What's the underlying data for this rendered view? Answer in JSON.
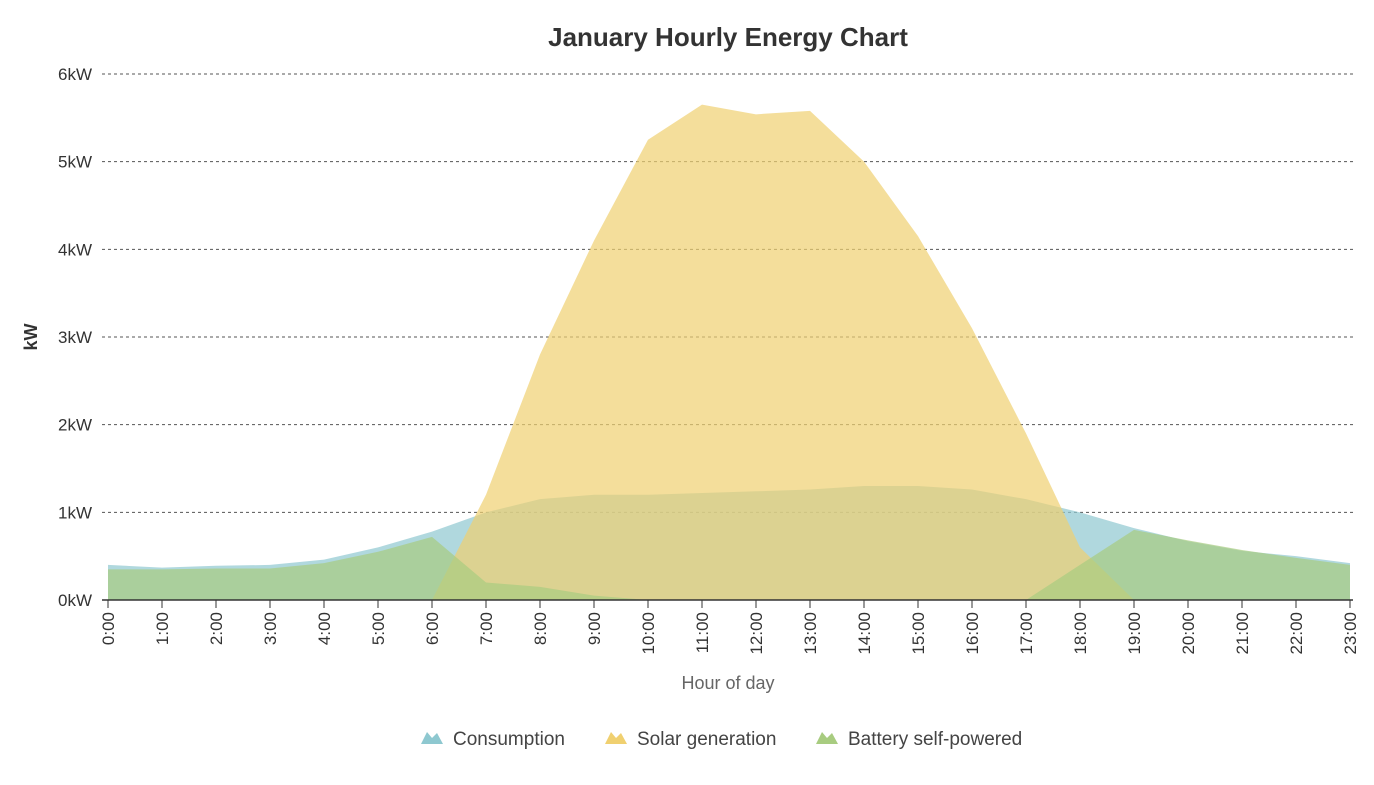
{
  "chart_data": {
    "type": "area",
    "title": "January Hourly Energy Chart",
    "xlabel": "Hour of day",
    "ylabel": "kW",
    "categories": [
      "0:00",
      "1:00",
      "2:00",
      "3:00",
      "4:00",
      "5:00",
      "6:00",
      "7:00",
      "8:00",
      "9:00",
      "10:00",
      "11:00",
      "12:00",
      "13:00",
      "14:00",
      "15:00",
      "16:00",
      "17:00",
      "18:00",
      "19:00",
      "20:00",
      "21:00",
      "22:00",
      "23:00"
    ],
    "ylim": [
      0,
      6
    ],
    "yticks": [
      0,
      1,
      2,
      3,
      4,
      5,
      6
    ],
    "ytick_labels": [
      "0kW",
      "1kW",
      "2kW",
      "3kW",
      "4kW",
      "5kW",
      "6kW"
    ],
    "grid": true,
    "legend_position": "bottom-center",
    "series": [
      {
        "name": "Consumption",
        "color": "#8ec8d0",
        "values": [
          0.4,
          0.37,
          0.39,
          0.4,
          0.46,
          0.6,
          0.78,
          1.0,
          1.15,
          1.2,
          1.2,
          1.22,
          1.24,
          1.26,
          1.3,
          1.3,
          1.26,
          1.15,
          1.0,
          0.82,
          0.67,
          0.56,
          0.5,
          0.42
        ]
      },
      {
        "name": "Solar generation",
        "color": "#f0d070",
        "values": [
          0,
          0,
          0,
          0,
          0,
          0,
          0,
          1.2,
          2.8,
          4.1,
          5.25,
          5.65,
          5.54,
          5.58,
          5.0,
          4.15,
          3.1,
          1.9,
          0.6,
          0,
          0,
          0,
          0,
          0
        ]
      },
      {
        "name": "Battery self-powered",
        "color": "#a8cc80",
        "values": [
          0.35,
          0.35,
          0.36,
          0.36,
          0.42,
          0.55,
          0.72,
          0.2,
          0.15,
          0.05,
          0,
          0,
          0,
          0,
          0,
          0,
          0,
          0,
          0.4,
          0.8,
          0.68,
          0.57,
          0.48,
          0.4
        ]
      }
    ]
  }
}
